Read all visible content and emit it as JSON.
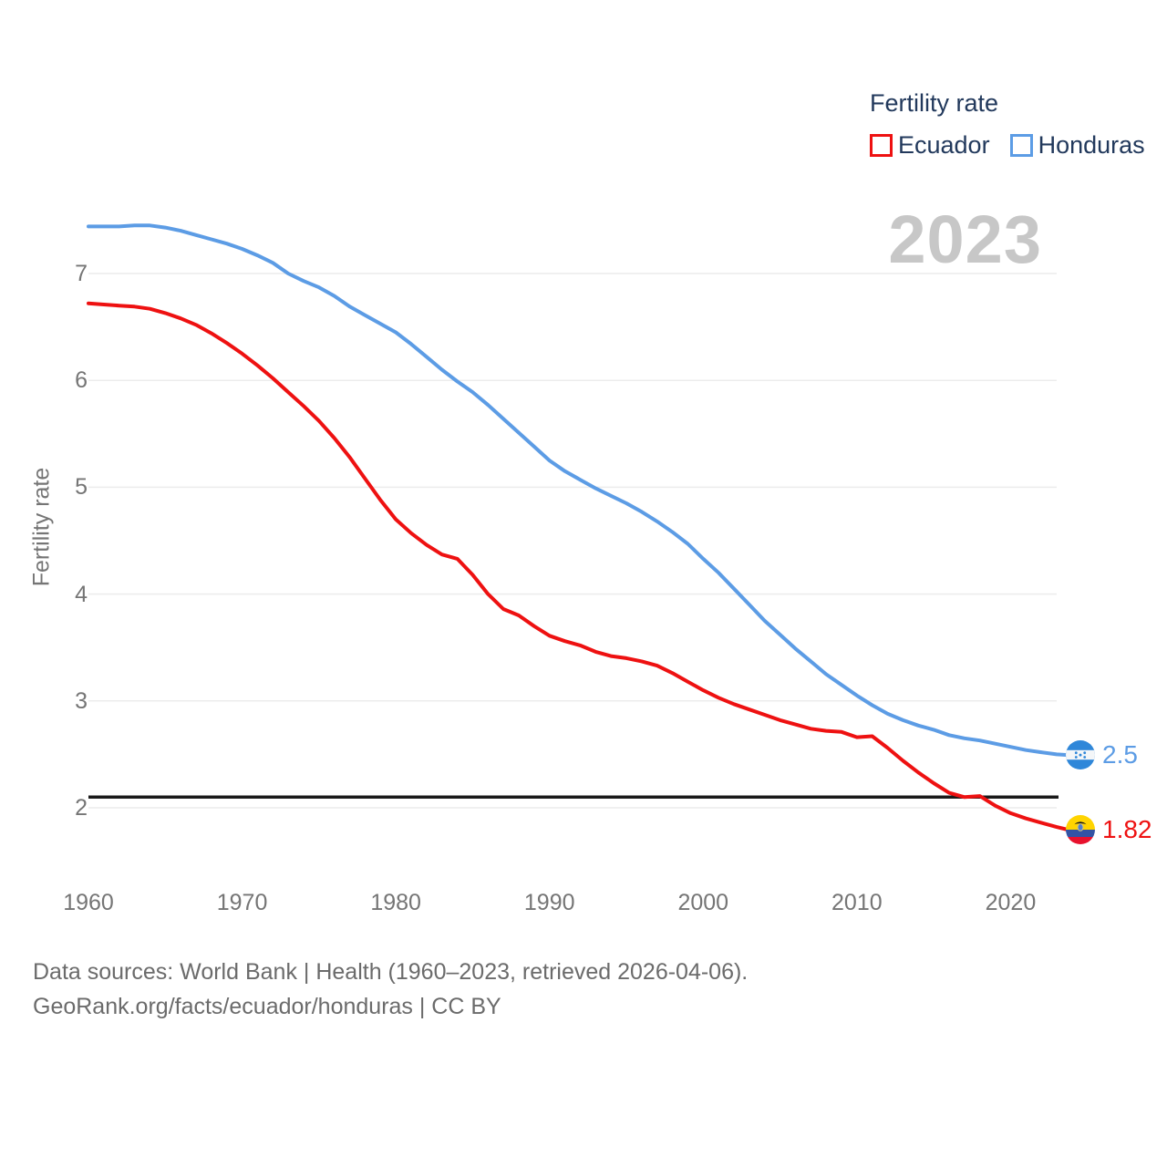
{
  "header": {
    "big_year": "2023"
  },
  "legend": {
    "title": "Fertility rate",
    "series": [
      {
        "label": "Ecuador",
        "color": "#ee1111"
      },
      {
        "label": "Honduras",
        "color": "#5c9ce5"
      }
    ]
  },
  "axes": {
    "y_title": "Fertility rate"
  },
  "end_labels": [
    {
      "series": "Honduras",
      "value": "2.5",
      "color": "#5c9ce5",
      "icon": "honduras-flag"
    },
    {
      "series": "Ecuador",
      "value": "1.82",
      "color": "#ee1111",
      "icon": "ecuador-flag"
    }
  ],
  "footer": {
    "line1": "Data sources: World Bank | Health (1960–2023, retrieved 2026-04-06).",
    "line2": "GeoRank.org/facts/ecuador/honduras | CC BY"
  },
  "colors": {
    "ecuador_line": "#ee1111",
    "honduras_line": "#5c9ce5",
    "gridline": "#ececec",
    "reference_line": "#1a1a1a",
    "axis_text": "#757575",
    "legend_text": "#22395c",
    "big_year_text": "#c7c7c7",
    "footer_text": "#6b6b6b"
  },
  "chart_data": {
    "type": "line",
    "title": "Fertility rate",
    "xlabel": "",
    "ylabel": "Fertility rate",
    "xlim": [
      1960,
      2023
    ],
    "ylim": [
      1.6,
      7.6
    ],
    "grid": "horizontal",
    "legend_position": "top-right",
    "x_ticks": [
      1960,
      1970,
      1980,
      1990,
      2000,
      2010,
      2020
    ],
    "y_ticks": [
      7,
      6,
      5,
      4,
      3,
      2
    ],
    "reference_line": {
      "value": 2.1,
      "color": "#1a1a1a"
    },
    "x": [
      1960,
      1961,
      1962,
      1963,
      1964,
      1965,
      1966,
      1967,
      1968,
      1969,
      1970,
      1971,
      1972,
      1973,
      1974,
      1975,
      1976,
      1977,
      1978,
      1979,
      1980,
      1981,
      1982,
      1983,
      1984,
      1985,
      1986,
      1987,
      1988,
      1989,
      1990,
      1991,
      1992,
      1993,
      1994,
      1995,
      1996,
      1997,
      1998,
      1999,
      2000,
      2001,
      2002,
      2003,
      2004,
      2005,
      2006,
      2007,
      2008,
      2009,
      2010,
      2011,
      2012,
      2013,
      2014,
      2015,
      2016,
      2017,
      2018,
      2019,
      2020,
      2021,
      2022,
      2023
    ],
    "series": [
      {
        "name": "Ecuador",
        "color": "#ee1111",
        "end_label": 1.82,
        "values": [
          6.72,
          6.71,
          6.7,
          6.69,
          6.67,
          6.63,
          6.58,
          6.52,
          6.44,
          6.35,
          6.25,
          6.14,
          6.02,
          5.89,
          5.76,
          5.62,
          5.46,
          5.28,
          5.08,
          4.88,
          4.7,
          4.57,
          4.46,
          4.37,
          4.33,
          4.18,
          4.0,
          3.86,
          3.8,
          3.7,
          3.61,
          3.56,
          3.52,
          3.46,
          3.42,
          3.4,
          3.37,
          3.33,
          3.26,
          3.18,
          3.1,
          3.03,
          2.97,
          2.92,
          2.87,
          2.82,
          2.78,
          2.74,
          2.72,
          2.71,
          2.66,
          2.67,
          2.56,
          2.44,
          2.33,
          2.23,
          2.14,
          2.1,
          2.11,
          2.02,
          1.95,
          1.9,
          1.86,
          1.82
        ]
      },
      {
        "name": "Honduras",
        "color": "#5c9ce5",
        "end_label": 2.5,
        "values": [
          7.44,
          7.44,
          7.44,
          7.45,
          7.45,
          7.43,
          7.4,
          7.36,
          7.32,
          7.28,
          7.23,
          7.17,
          7.1,
          7.0,
          6.93,
          6.87,
          6.79,
          6.69,
          6.61,
          6.53,
          6.45,
          6.34,
          6.22,
          6.1,
          5.99,
          5.89,
          5.77,
          5.64,
          5.51,
          5.38,
          5.25,
          5.15,
          5.07,
          4.99,
          4.92,
          4.85,
          4.77,
          4.68,
          4.58,
          4.47,
          4.33,
          4.2,
          4.05,
          3.9,
          3.75,
          3.62,
          3.49,
          3.37,
          3.25,
          3.15,
          3.05,
          2.96,
          2.88,
          2.82,
          2.77,
          2.73,
          2.68,
          2.65,
          2.63,
          2.6,
          2.57,
          2.54,
          2.52,
          2.5
        ]
      }
    ]
  }
}
